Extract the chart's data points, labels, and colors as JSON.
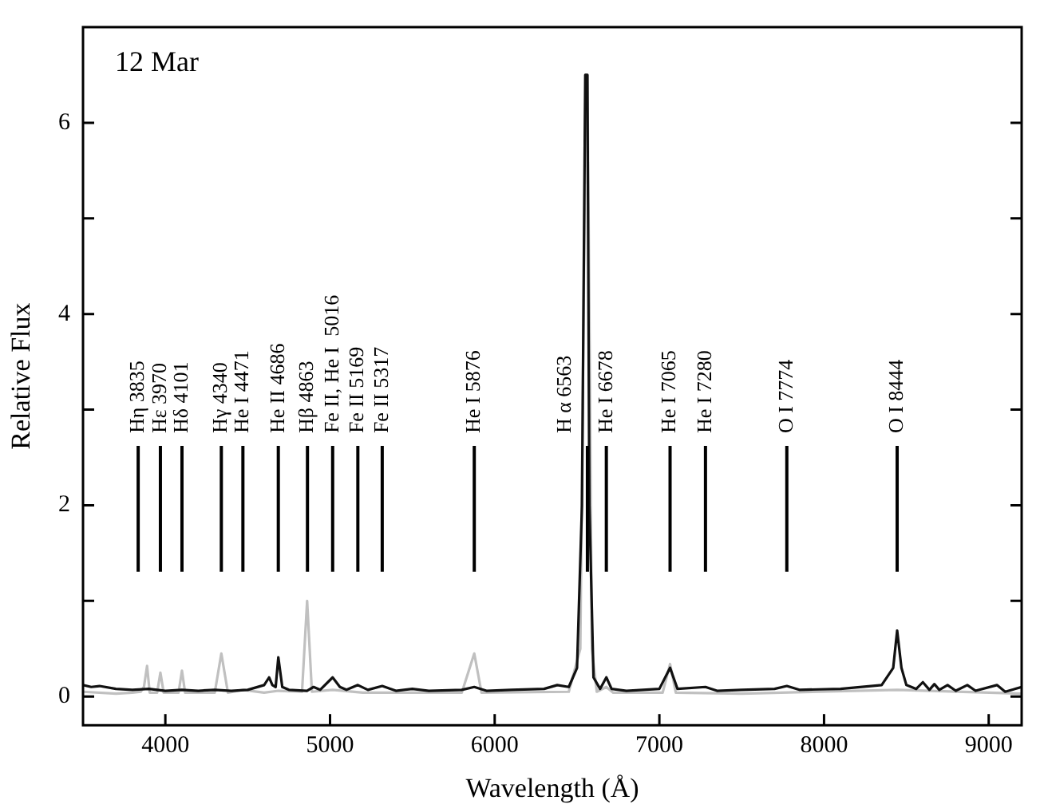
{
  "chart_data": {
    "type": "line",
    "xlabel": "Wavelength (Å)",
    "ylabel": "Relative Flux",
    "xlim": [
      3500,
      9200
    ],
    "ylim": [
      -0.3,
      7
    ],
    "xticks": [
      4000,
      5000,
      6000,
      7000,
      8000,
      9000
    ],
    "yticks": [
      0,
      {
        "value": 1,
        "label": null
      },
      2,
      {
        "value": 3,
        "label": null
      },
      4,
      {
        "value": 5,
        "label": null
      },
      6
    ],
    "grid": false,
    "legend": false,
    "series": [
      {
        "color": "#111111",
        "x": [
          3500,
          3550,
          3600,
          3700,
          3800,
          3900,
          4000,
          4100,
          4200,
          4300,
          4400,
          4500,
          4600,
          4630,
          4650,
          4670,
          4686,
          4710,
          4750,
          4860,
          4900,
          4940,
          5016,
          5060,
          5100,
          5169,
          5230,
          5317,
          5400,
          5500,
          5600,
          5800,
          5876,
          5950,
          6100,
          6300,
          6380,
          6450,
          6500,
          6530,
          6550,
          6563,
          6575,
          6600,
          6640,
          6678,
          6710,
          6800,
          7000,
          7065,
          7110,
          7280,
          7350,
          7500,
          7700,
          7774,
          7850,
          8100,
          8350,
          8420,
          8444,
          8470,
          8500,
          8560,
          8600,
          8640,
          8670,
          8700,
          8750,
          8800,
          8870,
          8920,
          9050,
          9100,
          9200
        ],
        "values": [
          0.12,
          0.1,
          0.11,
          0.08,
          0.07,
          0.08,
          0.06,
          0.07,
          0.06,
          0.07,
          0.06,
          0.07,
          0.12,
          0.2,
          0.12,
          0.1,
          0.41,
          0.1,
          0.07,
          0.06,
          0.1,
          0.07,
          0.2,
          0.1,
          0.07,
          0.12,
          0.07,
          0.11,
          0.06,
          0.08,
          0.06,
          0.07,
          0.1,
          0.06,
          0.07,
          0.08,
          0.12,
          0.1,
          0.3,
          2.0,
          6.5,
          6.5,
          2.0,
          0.2,
          0.08,
          0.2,
          0.08,
          0.06,
          0.08,
          0.3,
          0.08,
          0.1,
          0.06,
          0.07,
          0.08,
          0.11,
          0.07,
          0.08,
          0.12,
          0.3,
          0.69,
          0.3,
          0.12,
          0.08,
          0.15,
          0.07,
          0.13,
          0.07,
          0.12,
          0.06,
          0.12,
          0.06,
          0.12,
          0.05,
          0.1
        ]
      },
      {
        "color": "#c0c0c0",
        "x": [
          3500,
          3700,
          3800,
          3850,
          3870,
          3889,
          3905,
          3950,
          3970,
          3990,
          4080,
          4101,
          4120,
          4300,
          4340,
          4380,
          4471,
          4600,
          4686,
          4830,
          4861,
          4890,
          5016,
          5200,
          5800,
          5876,
          5920,
          6450,
          6520,
          6540,
          6553,
          6563,
          6575,
          6590,
          6620,
          6678,
          6720,
          7020,
          7065,
          7100,
          7500,
          8444,
          9200
        ],
        "values": [
          0.05,
          0.03,
          0.04,
          0.05,
          0.1,
          0.32,
          0.04,
          0.04,
          0.25,
          0.04,
          0.04,
          0.27,
          0.04,
          0.04,
          0.45,
          0.04,
          0.07,
          0.04,
          0.06,
          0.05,
          1.0,
          0.05,
          0.07,
          0.04,
          0.04,
          0.45,
          0.04,
          0.05,
          0.5,
          4.0,
          6.5,
          6.5,
          4.0,
          0.5,
          0.05,
          0.1,
          0.04,
          0.04,
          0.34,
          0.04,
          0.03,
          0.07,
          0.03
        ]
      }
    ],
    "annotations": [
      "12 Mar"
    ],
    "ref_lines": [
      {
        "axis": "x",
        "value": 3835,
        "label": "Hη 3835"
      },
      {
        "axis": "x",
        "value": 3970,
        "label": "Hε 3970"
      },
      {
        "axis": "x",
        "value": 4101,
        "label": "Hδ 4101"
      },
      {
        "axis": "x",
        "value": 4340,
        "label": "Hγ 4340"
      },
      {
        "axis": "x",
        "value": 4471,
        "label": "He I 4471"
      },
      {
        "axis": "x",
        "value": 4686,
        "label": "He II 4686"
      },
      {
        "axis": "x",
        "value": 4863,
        "label": "Hβ 4863"
      },
      {
        "axis": "x",
        "value": 5016,
        "label": "Fe II, He I  5016"
      },
      {
        "axis": "x",
        "value": 5169,
        "label": "Fe II 5169"
      },
      {
        "axis": "x",
        "value": 5317,
        "label": "Fe II 5317"
      },
      {
        "axis": "x",
        "value": 5876,
        "label": "He I 5876"
      },
      {
        "axis": "x",
        "value": 6563,
        "label": "H α 6563"
      },
      {
        "axis": "x",
        "value": 6678,
        "label": "He I 6678"
      },
      {
        "axis": "x",
        "value": 7065,
        "label": "He I 7065"
      },
      {
        "axis": "x",
        "value": 7280,
        "label": "He I 7280"
      },
      {
        "axis": "x",
        "value": 7774,
        "label": "O I 7774"
      },
      {
        "axis": "x",
        "value": 8444,
        "label": "O I 8444"
      }
    ]
  }
}
